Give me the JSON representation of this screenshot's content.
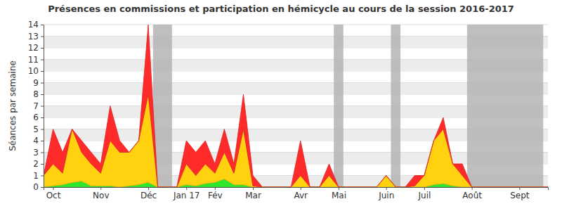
{
  "chart_data": {
    "type": "area",
    "title": "Présences en commissions et participation en hémicycle au cours de la session 2016-2017",
    "y_label": "Séances par semaine",
    "categories": [
      null,
      "Oct",
      null,
      null,
      null,
      null,
      "Nov",
      null,
      null,
      null,
      null,
      "Déc",
      null,
      null,
      null,
      "Jan 17",
      null,
      null,
      "Fév",
      null,
      null,
      null,
      "Mar",
      null,
      null,
      null,
      null,
      "Avr",
      null,
      null,
      null,
      "Mai",
      null,
      null,
      null,
      null,
      "Juin",
      null,
      null,
      null,
      "Juil",
      null,
      null,
      null,
      null,
      "Août",
      null,
      null,
      null,
      null,
      "Sept",
      null,
      null,
      null
    ],
    "series": [
      {
        "color": "#2ee62e",
        "values": [
          0,
          0.1,
          0.2,
          0.4,
          0.5,
          0.1,
          0.1,
          0.1,
          0,
          0.1,
          0.2,
          0.4,
          0,
          0,
          0,
          0.2,
          0.1,
          0.3,
          0.4,
          0.7,
          0.2,
          0.2,
          0,
          0,
          0,
          0,
          0,
          0,
          0,
          0,
          0,
          0,
          0,
          0,
          0,
          0,
          0,
          0,
          0,
          0,
          0,
          0.2,
          0.3,
          0.1,
          0,
          0,
          0,
          0,
          0,
          0,
          0,
          0,
          0,
          0
        ]
      },
      {
        "color": "#ffd10f",
        "values": [
          1,
          1.9,
          1,
          4.6,
          2.5,
          1.9,
          1.1,
          3.9,
          3,
          2.9,
          3.8,
          7.6,
          0,
          0,
          0,
          1.8,
          0.9,
          1.7,
          0.8,
          2.3,
          1,
          4.8,
          0.1,
          0,
          0,
          0,
          0,
          1,
          0,
          0,
          1,
          0,
          0,
          0,
          0,
          0,
          1,
          0,
          0,
          0.1,
          1,
          3.8,
          4.7,
          1.9,
          1,
          0,
          0,
          0,
          0,
          0,
          0,
          0,
          0,
          0
        ]
      },
      {
        "color": "#ff2a2a",
        "values": [
          0,
          3,
          1.8,
          0,
          1,
          1,
          0.8,
          3,
          1,
          0,
          0,
          6,
          0,
          0,
          0,
          2,
          2,
          2,
          0.8,
          2,
          0.8,
          3,
          0.9,
          0,
          0,
          0,
          0,
          3,
          0,
          0,
          1,
          0,
          0,
          0,
          0,
          0,
          0,
          0,
          0,
          0.9,
          0,
          0,
          1,
          0,
          1,
          0,
          0,
          0,
          0,
          0,
          0,
          0,
          0,
          0
        ]
      }
    ],
    "shaded_ranges": [
      [
        11.5,
        13.5
      ],
      [
        30.5,
        31.5
      ],
      [
        36.5,
        37.5
      ],
      [
        44.5,
        52.5
      ]
    ],
    "stacked": true,
    "grid": true,
    "ylim": [
      0,
      14
    ],
    "yticks": [
      0,
      1,
      2,
      3,
      4,
      5,
      6,
      7,
      8,
      9,
      10,
      11,
      12,
      13,
      14
    ]
  }
}
